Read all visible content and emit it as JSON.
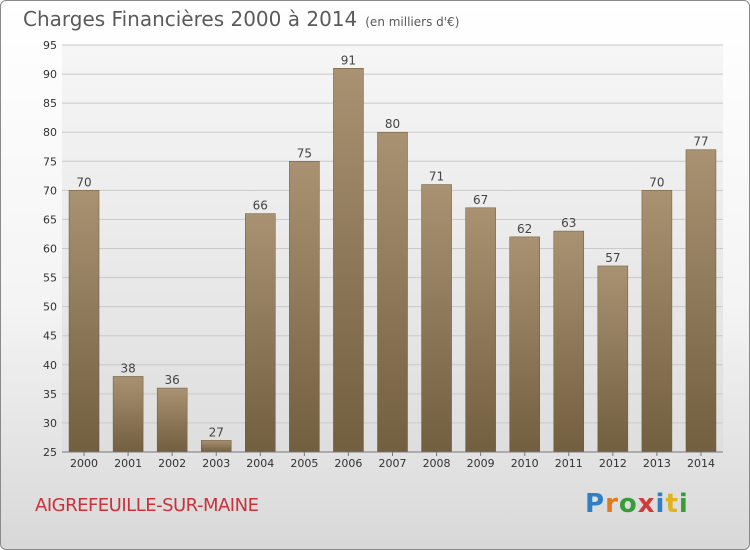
{
  "chart_data": {
    "type": "bar",
    "title": "Charges Financières 2000 à 2014",
    "subtitle": "(en milliers d'€)",
    "categories": [
      "2000",
      "2001",
      "2002",
      "2003",
      "2004",
      "2005",
      "2006",
      "2007",
      "2008",
      "2009",
      "2010",
      "2011",
      "2012",
      "2013",
      "2014"
    ],
    "values": [
      70,
      38,
      36,
      27,
      66,
      75,
      91,
      80,
      71,
      67,
      62,
      63,
      57,
      70,
      77
    ],
    "ylim": [
      25,
      95
    ],
    "yticks": [
      25,
      30,
      35,
      40,
      45,
      50,
      55,
      60,
      65,
      70,
      75,
      80,
      85,
      90,
      95
    ],
    "grid": true,
    "bar_color": "#8a7658"
  },
  "footer": {
    "city": "AIGREFEUILLE-SUR-MAINE",
    "logo": "Proxiti"
  }
}
